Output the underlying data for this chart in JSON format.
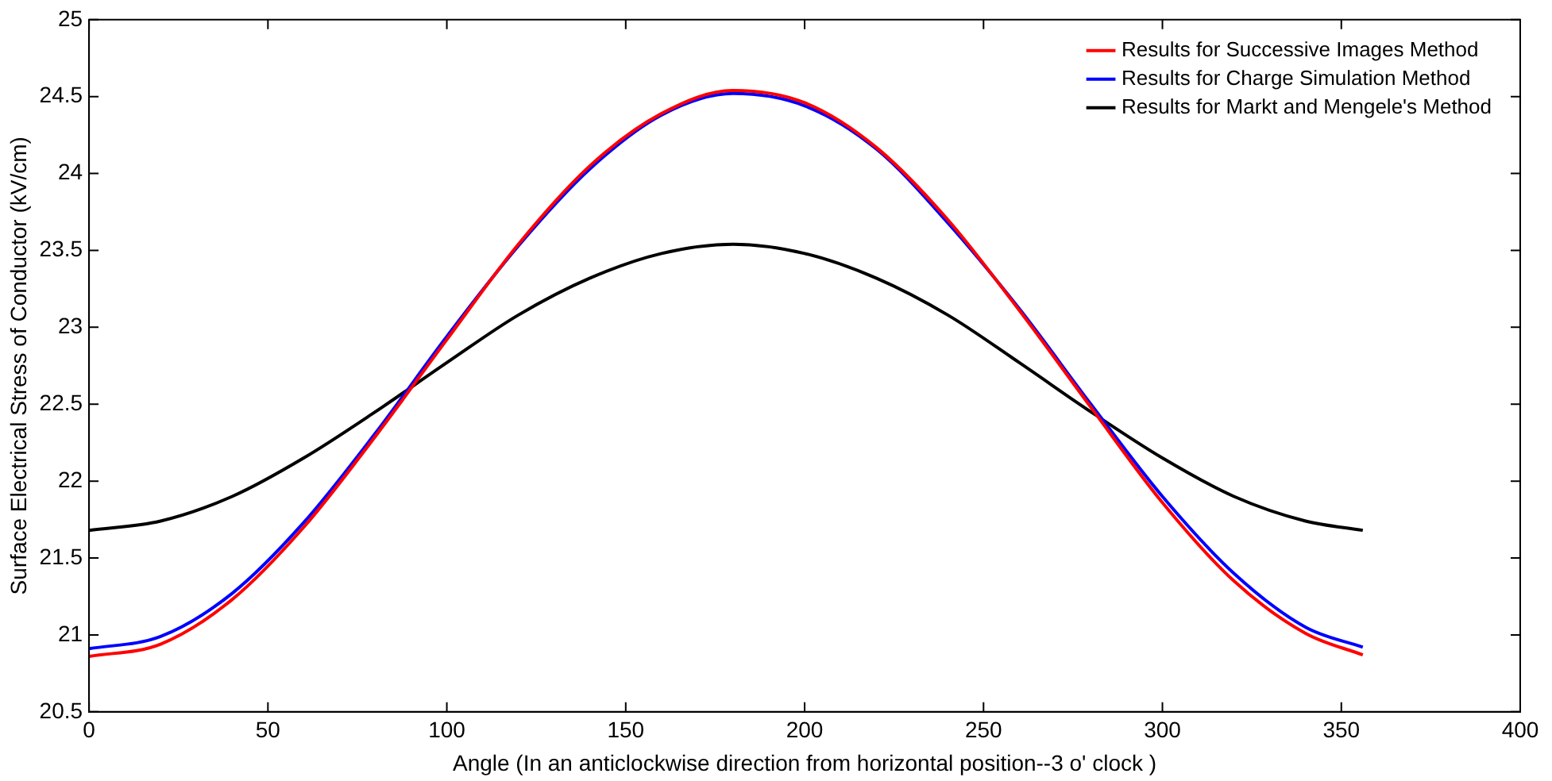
{
  "chart_data": {
    "type": "line",
    "xlabel": "Angle (In an anticlockwise direction from horizontal position--3 o' clock )",
    "ylabel": "Surface Electrical Stress of Conductor (kV/cm)",
    "x": [
      0,
      20,
      40,
      60,
      80,
      100,
      120,
      140,
      160,
      180,
      200,
      220,
      240,
      260,
      280,
      300,
      320,
      340,
      356
    ],
    "series": [
      {
        "name": "Results for Successive Images Method",
        "color": "#ff0000",
        "values": [
          20.86,
          20.94,
          21.23,
          21.7,
          22.29,
          22.92,
          23.54,
          24.05,
          24.39,
          24.54,
          24.46,
          24.17,
          23.7,
          23.11,
          22.48,
          21.86,
          21.35,
          21.01,
          20.87
        ]
      },
      {
        "name": "Results for Charge Simulation Method",
        "color": "#0000ff",
        "values": [
          20.91,
          20.99,
          21.27,
          21.73,
          22.31,
          22.94,
          23.53,
          24.03,
          24.38,
          24.52,
          24.44,
          24.16,
          23.68,
          23.12,
          22.5,
          21.9,
          21.4,
          21.05,
          20.92
        ]
      },
      {
        "name": "Results for Markt and Mengele's Method",
        "color": "#000000",
        "values": [
          21.68,
          21.74,
          21.9,
          22.15,
          22.45,
          22.77,
          23.08,
          23.32,
          23.48,
          23.54,
          23.48,
          23.32,
          23.08,
          22.77,
          22.45,
          22.15,
          21.9,
          21.74,
          21.68
        ]
      }
    ],
    "xlim": [
      0,
      400
    ],
    "xticks": [
      0,
      50,
      100,
      150,
      200,
      250,
      300,
      350,
      400
    ],
    "ylim": [
      20.5,
      25
    ],
    "yticks": [
      20.5,
      21,
      21.5,
      22,
      22.5,
      23,
      23.5,
      24,
      24.5,
      25
    ],
    "grid": false,
    "legend": "top right",
    "marker": "none",
    "line_style": "solid"
  }
}
